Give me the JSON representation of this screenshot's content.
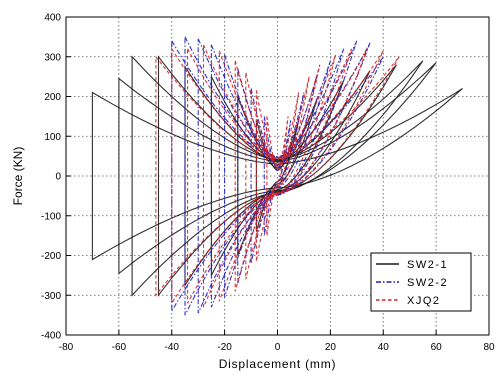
{
  "chart_data": {
    "type": "line",
    "title": "",
    "xlabel": "Displacement (mm)",
    "ylabel": "Force (KN)",
    "xlim": [
      -80,
      80
    ],
    "ylim": [
      -400,
      400
    ],
    "x_ticks": [
      -80,
      -60,
      -40,
      -20,
      0,
      20,
      40,
      60,
      80
    ],
    "y_ticks": [
      -400,
      -300,
      -200,
      -100,
      0,
      100,
      200,
      300,
      400
    ],
    "x_tick_labels": [
      "-80",
      "-60",
      "-40",
      "-20",
      "0",
      "20",
      "40",
      "60",
      "80"
    ],
    "y_tick_labels": [
      "-400",
      "-300",
      "-200",
      "-100",
      "0",
      "100",
      "200",
      "300",
      "400"
    ],
    "grid": true,
    "legend_position": "bottom-right",
    "series": [
      {
        "name": "SW2-1",
        "color": "#1a1a1a",
        "dash": "solid",
        "cycles": [
          {
            "d": 8,
            "pos": 140,
            "neg": -140
          },
          {
            "d": 15,
            "pos": 195,
            "neg": -200
          },
          {
            "d": 25,
            "pos": 240,
            "neg": -250
          },
          {
            "d": 35,
            "pos": 265,
            "neg": -275
          },
          {
            "d": 45,
            "pos": 280,
            "neg": -300
          },
          {
            "d": 55,
            "pos": 290,
            "neg": -300
          },
          {
            "d": 60,
            "pos": 285,
            "neg": -245
          },
          {
            "d": 70,
            "pos": 220,
            "neg": -210
          }
        ]
      },
      {
        "name": "SW2-2",
        "color": "#1f1fbf",
        "dash": "dashdot",
        "cycles": [
          {
            "d": 5,
            "pos": 140,
            "neg": -150
          },
          {
            "d": 10,
            "pos": 210,
            "neg": -220
          },
          {
            "d": 15,
            "pos": 255,
            "neg": -270
          },
          {
            "d": 20,
            "pos": 290,
            "neg": -305
          },
          {
            "d": 25,
            "pos": 320,
            "neg": -330
          },
          {
            "d": 30,
            "pos": 340,
            "neg": -345
          },
          {
            "d": 35,
            "pos": 335,
            "neg": -350
          },
          {
            "d": 40,
            "pos": 300,
            "neg": -340
          }
        ]
      },
      {
        "name": "XJQ2",
        "color": "#d42020",
        "dash": "dashed",
        "cycles": [
          {
            "d": 4,
            "pos": 150,
            "neg": -150
          },
          {
            "d": 8,
            "pos": 210,
            "neg": -215
          },
          {
            "d": 12,
            "pos": 250,
            "neg": -260
          },
          {
            "d": 16,
            "pos": 280,
            "neg": -290
          },
          {
            "d": 22,
            "pos": 305,
            "neg": -315
          },
          {
            "d": 28,
            "pos": 320,
            "neg": -330
          },
          {
            "d": 34,
            "pos": 320,
            "neg": -320
          },
          {
            "d": 40,
            "pos": 315,
            "neg": -320
          },
          {
            "d": 46,
            "pos": 300,
            "neg": -300
          }
        ]
      }
    ]
  },
  "legend": {
    "entries": [
      "SW2-1",
      "SW2-2",
      "XJQ2"
    ],
    "display_labels": [
      "SW2-1",
      "SW2-2",
      "XJQ2"
    ]
  },
  "colors": {
    "axis": "#000000",
    "grid": "#555555",
    "background": "#ffffff"
  }
}
